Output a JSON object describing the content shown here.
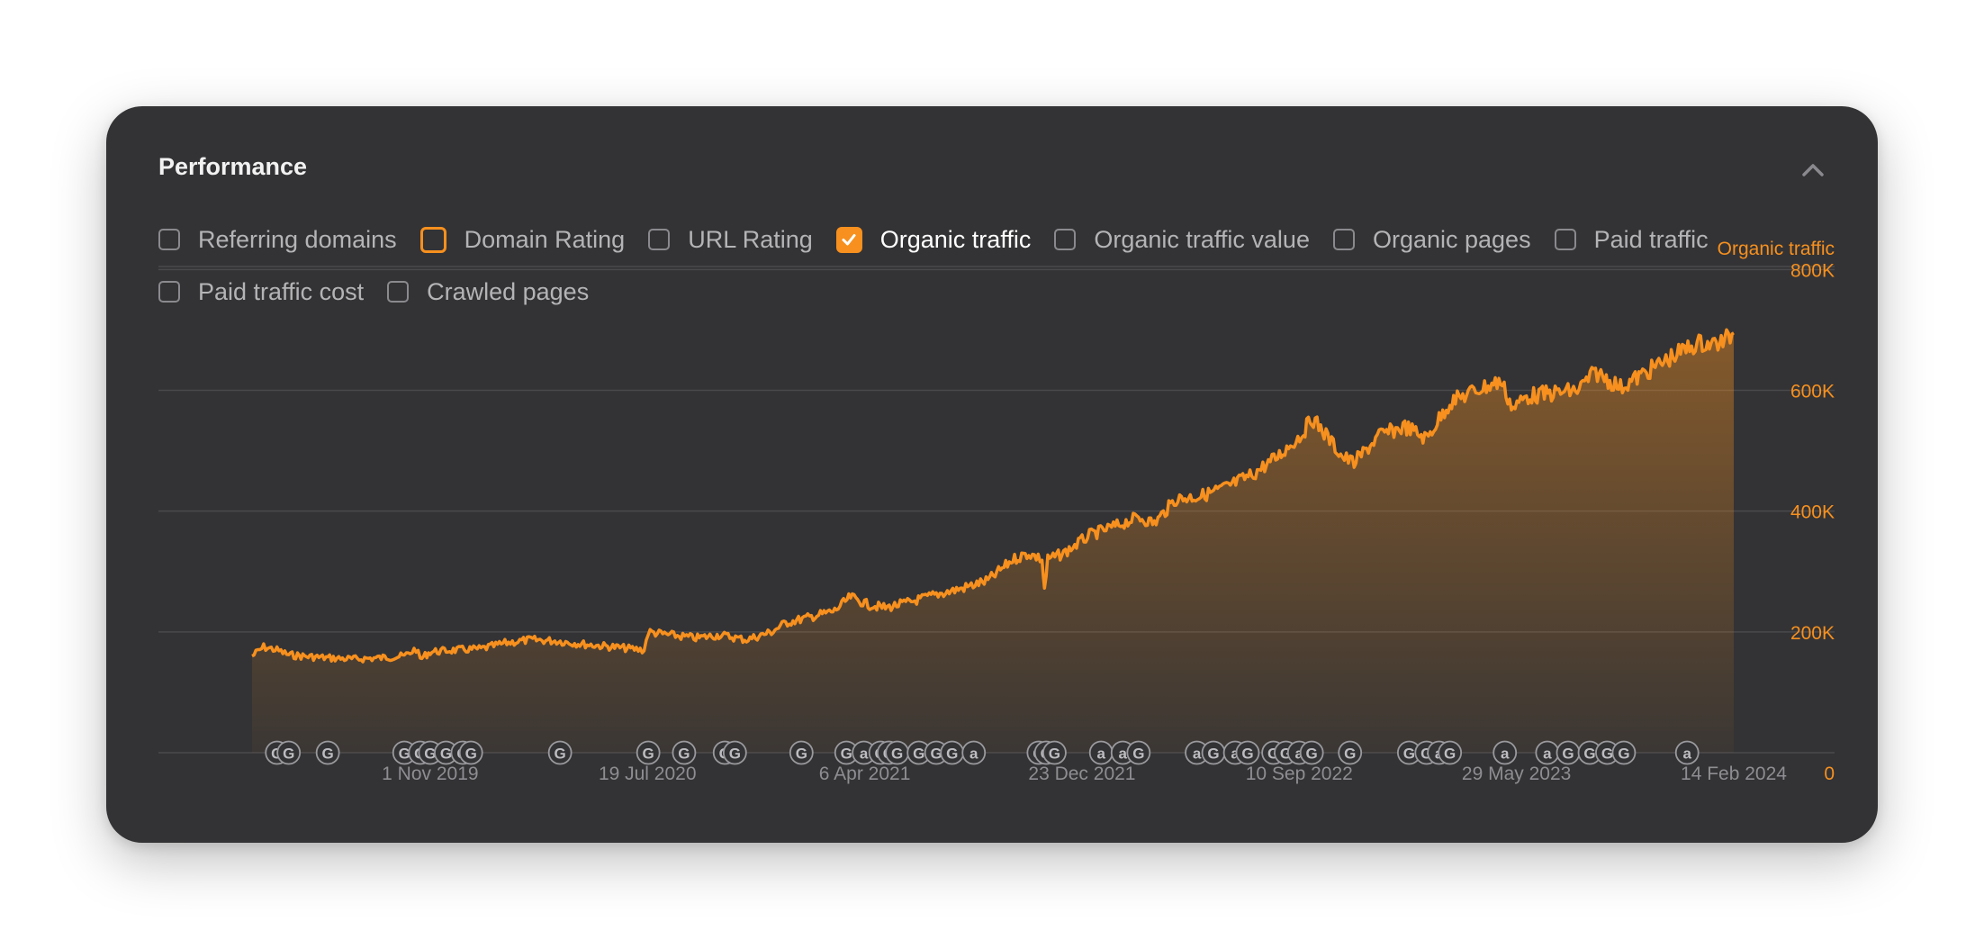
{
  "panel": {
    "title": "Performance",
    "collapse_icon": "chevron-up-icon"
  },
  "metrics": [
    {
      "label": "Referring domains",
      "state": "off"
    },
    {
      "label": "Domain Rating",
      "state": "highlight"
    },
    {
      "label": "URL Rating",
      "state": "off"
    },
    {
      "label": "Organic traffic",
      "state": "checked"
    },
    {
      "label": "Organic traffic value",
      "state": "off"
    },
    {
      "label": "Organic pages",
      "state": "off"
    },
    {
      "label": "Paid traffic",
      "state": "off"
    },
    {
      "label": "Paid traffic cost",
      "state": "off"
    },
    {
      "label": "Crawled pages",
      "state": "off"
    }
  ],
  "colors": {
    "accent": "#f7901e",
    "card_bg": "#333335",
    "grid": "#4a4a4d",
    "muted_text": "#8e8e92"
  },
  "chart_data": {
    "type": "area",
    "series_label": "Organic traffic",
    "x_ticks": [
      "1 Nov 2019",
      "19 Jul 2020",
      "6 Apr 2021",
      "23 Dec 2021",
      "10 Sep 2022",
      "29 May 2023",
      "14 Feb 2024"
    ],
    "y_ticks": [
      "800K",
      "600K",
      "400K",
      "200K",
      "0"
    ],
    "ylim": [
      0,
      800000
    ],
    "y_top": 805000,
    "grid": true,
    "x_start": "2019-04-01",
    "x_end": "2024-02-14",
    "series": [
      {
        "name": "Organic traffic",
        "points": [
          [
            "2019-04-01",
            160000
          ],
          [
            "2019-04-15",
            175000
          ],
          [
            "2019-05-01",
            170000
          ],
          [
            "2019-05-15",
            162000
          ],
          [
            "2019-06-01",
            160000
          ],
          [
            "2019-07-01",
            157000
          ],
          [
            "2019-08-01",
            155000
          ],
          [
            "2019-09-01",
            157000
          ],
          [
            "2019-10-01",
            160000
          ],
          [
            "2019-10-15",
            172000
          ],
          [
            "2019-10-20",
            155000
          ],
          [
            "2019-11-01",
            167000
          ],
          [
            "2019-12-01",
            170000
          ],
          [
            "2020-01-01",
            172000
          ],
          [
            "2020-02-01",
            182000
          ],
          [
            "2020-03-01",
            187000
          ],
          [
            "2020-04-01",
            185000
          ],
          [
            "2020-05-01",
            180000
          ],
          [
            "2020-06-01",
            176000
          ],
          [
            "2020-07-01",
            172000
          ],
          [
            "2020-07-15",
            170000
          ],
          [
            "2020-07-20",
            200000
          ],
          [
            "2020-08-15",
            195000
          ],
          [
            "2020-09-15",
            190000
          ],
          [
            "2020-10-15",
            195000
          ],
          [
            "2020-11-15",
            187000
          ],
          [
            "2020-12-15",
            200000
          ],
          [
            "2021-01-01",
            215000
          ],
          [
            "2021-02-01",
            225000
          ],
          [
            "2021-03-01",
            235000
          ],
          [
            "2021-03-20",
            258000
          ],
          [
            "2021-04-10",
            245000
          ],
          [
            "2021-05-01",
            240000
          ],
          [
            "2021-06-01",
            250000
          ],
          [
            "2021-07-01",
            262000
          ],
          [
            "2021-08-01",
            272000
          ],
          [
            "2021-09-01",
            285000
          ],
          [
            "2021-10-01",
            320000
          ],
          [
            "2021-10-20",
            330000
          ],
          [
            "2021-11-05",
            320000
          ],
          [
            "2021-11-08",
            270000
          ],
          [
            "2021-11-12",
            320000
          ],
          [
            "2021-12-01",
            330000
          ],
          [
            "2022-01-01",
            360000
          ],
          [
            "2022-02-01",
            375000
          ],
          [
            "2022-03-01",
            390000
          ],
          [
            "2022-03-20",
            380000
          ],
          [
            "2022-04-15",
            420000
          ],
          [
            "2022-05-15",
            425000
          ],
          [
            "2022-06-15",
            440000
          ],
          [
            "2022-07-15",
            460000
          ],
          [
            "2022-08-15",
            490000
          ],
          [
            "2022-09-15",
            530000
          ],
          [
            "2022-09-25",
            555000
          ],
          [
            "2022-10-10",
            530000
          ],
          [
            "2022-11-01",
            490000
          ],
          [
            "2022-11-15",
            480000
          ],
          [
            "2022-12-15",
            525000
          ],
          [
            "2023-01-15",
            540000
          ],
          [
            "2023-02-10",
            520000
          ],
          [
            "2023-03-10",
            580000
          ],
          [
            "2023-04-10",
            600000
          ],
          [
            "2023-05-10",
            615000
          ],
          [
            "2023-05-25",
            570000
          ],
          [
            "2023-06-10",
            590000
          ],
          [
            "2023-07-10",
            595000
          ],
          [
            "2023-08-10",
            600000
          ],
          [
            "2023-09-01",
            630000
          ],
          [
            "2023-10-01",
            605000
          ],
          [
            "2023-11-01",
            630000
          ],
          [
            "2023-12-01",
            655000
          ],
          [
            "2024-01-01",
            678000
          ],
          [
            "2024-01-20",
            677000
          ],
          [
            "2024-02-01",
            680000
          ],
          [
            "2024-02-14",
            695000
          ]
        ]
      }
    ],
    "annotations": [
      {
        "date": "2019-05-01",
        "label": "G"
      },
      {
        "date": "2019-05-15",
        "label": "G"
      },
      {
        "date": "2019-07-01",
        "label": "G"
      },
      {
        "date": "2019-10-01",
        "label": "G"
      },
      {
        "date": "2019-10-20",
        "label": "G"
      },
      {
        "date": "2019-11-01",
        "label": "G"
      },
      {
        "date": "2019-11-20",
        "label": "G"
      },
      {
        "date": "2019-12-10",
        "label": "G"
      },
      {
        "date": "2019-12-20",
        "label": "G"
      },
      {
        "date": "2020-04-05",
        "label": "G"
      },
      {
        "date": "2020-07-20",
        "label": "G"
      },
      {
        "date": "2020-09-01",
        "label": "G"
      },
      {
        "date": "2020-10-20",
        "label": "G"
      },
      {
        "date": "2020-11-01",
        "label": "G"
      },
      {
        "date": "2021-01-20",
        "label": "G"
      },
      {
        "date": "2021-03-15",
        "label": "G"
      },
      {
        "date": "2021-04-05",
        "label": "a"
      },
      {
        "date": "2021-04-25",
        "label": "G"
      },
      {
        "date": "2021-05-05",
        "label": "G"
      },
      {
        "date": "2021-05-15",
        "label": "G"
      },
      {
        "date": "2021-06-10",
        "label": "G"
      },
      {
        "date": "2021-07-01",
        "label": "G"
      },
      {
        "date": "2021-07-20",
        "label": "G"
      },
      {
        "date": "2021-08-15",
        "label": "a"
      },
      {
        "date": "2021-11-01",
        "label": "G"
      },
      {
        "date": "2021-11-10",
        "label": "G"
      },
      {
        "date": "2021-11-20",
        "label": "G"
      },
      {
        "date": "2022-01-15",
        "label": "a"
      },
      {
        "date": "2022-02-10",
        "label": "a"
      },
      {
        "date": "2022-03-01",
        "label": "G"
      },
      {
        "date": "2022-05-10",
        "label": "a"
      },
      {
        "date": "2022-05-30",
        "label": "G"
      },
      {
        "date": "2022-06-25",
        "label": "a"
      },
      {
        "date": "2022-07-10",
        "label": "G"
      },
      {
        "date": "2022-08-10",
        "label": "G"
      },
      {
        "date": "2022-08-25",
        "label": "G"
      },
      {
        "date": "2022-09-10",
        "label": "a"
      },
      {
        "date": "2022-09-25",
        "label": "G"
      },
      {
        "date": "2022-11-10",
        "label": "G"
      },
      {
        "date": "2023-01-20",
        "label": "G"
      },
      {
        "date": "2023-02-10",
        "label": "G"
      },
      {
        "date": "2023-02-25",
        "label": "a"
      },
      {
        "date": "2023-03-10",
        "label": "G"
      },
      {
        "date": "2023-05-15",
        "label": "a"
      },
      {
        "date": "2023-07-05",
        "label": "a"
      },
      {
        "date": "2023-07-30",
        "label": "G"
      },
      {
        "date": "2023-08-25",
        "label": "G"
      },
      {
        "date": "2023-09-15",
        "label": "G"
      },
      {
        "date": "2023-10-05",
        "label": "G"
      },
      {
        "date": "2023-12-20",
        "label": "a"
      }
    ]
  }
}
